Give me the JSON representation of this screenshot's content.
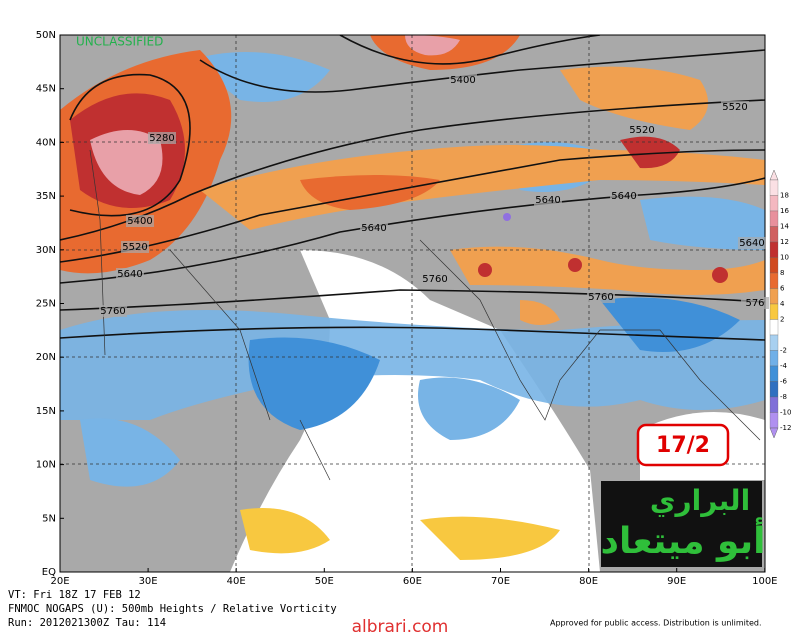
{
  "header": {
    "watermark": "UNCLASSIFIED"
  },
  "map": {
    "lat_labels": [
      "50N",
      "45N",
      "40N",
      "35N",
      "30N",
      "25N",
      "20N",
      "15N",
      "10N",
      "5N",
      "EQ"
    ],
    "lon_labels": [
      "20E",
      "30E",
      "40E",
      "50E",
      "60E",
      "70E",
      "80E",
      "90E",
      "100E"
    ],
    "contour_labels": [
      "5400",
      "5520",
      "5280",
      "5520",
      "5400",
      "5520",
      "5640",
      "5640",
      "5640",
      "5640",
      "5640",
      "5760",
      "5760",
      "5760",
      "576"
    ]
  },
  "colorbar": {
    "ticks": [
      18,
      16,
      14,
      12,
      10,
      8,
      6,
      4,
      2,
      -2,
      -4,
      -6,
      -8,
      -10,
      -12
    ]
  },
  "stamp": {
    "date": "17/2"
  },
  "logo": {
    "line1": "البراري",
    "line2": "أبو ميتعاد"
  },
  "footer": {
    "valid_time": "VT: Fri 18Z 17 FEB 12",
    "product": "FNMOC NOGAPS (U): 500mb Heights / Relative Vorticity",
    "run": "Run: 2012021300Z Tau: 114",
    "notice": "Approved for public access. Distribution is unlimited."
  },
  "site": "albrari.com"
}
